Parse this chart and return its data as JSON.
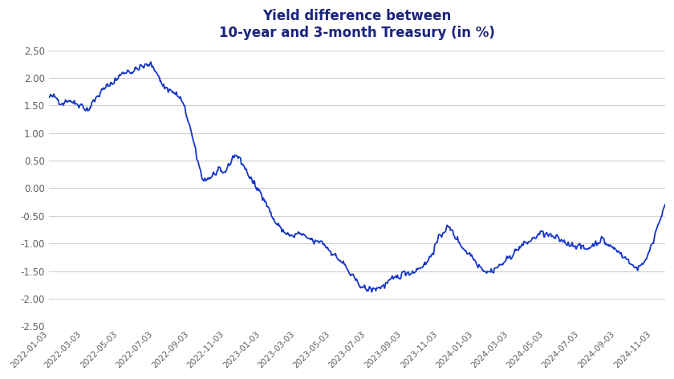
{
  "title_line1": "Yield difference between",
  "title_line2": "10-year and 3-month Treasury (in %)",
  "title_color": "#1a237e",
  "line_color": "#1535c9",
  "background_color": "#ffffff",
  "ylim": [
    -2.5,
    2.5
  ],
  "yticks": [
    -2.5,
    -2.0,
    -1.5,
    -1.0,
    -0.5,
    0.0,
    0.5,
    1.0,
    1.5,
    2.0,
    2.5
  ],
  "grid_color": "#d0d0d0",
  "tick_label_color": "#606060",
  "xtick_dates": [
    "2022-01-03",
    "2022-03-03",
    "2022-05-03",
    "2022-07-03",
    "2022-09-03",
    "2022-11-03",
    "2023-01-03",
    "2023-03-03",
    "2023-05-03",
    "2023-07-03",
    "2023-09-03",
    "2023-11-03",
    "2024-01-03",
    "2024-03-03",
    "2024-05-03",
    "2024-07-03",
    "2024-09-03",
    "2024-11-03"
  ],
  "xlim_start": "2022-01-03",
  "xlim_end": "2024-11-25",
  "line_width": 1.3,
  "title_fontsize": 12,
  "tick_fontsize": 7.5,
  "ytick_fontsize": 8.5
}
